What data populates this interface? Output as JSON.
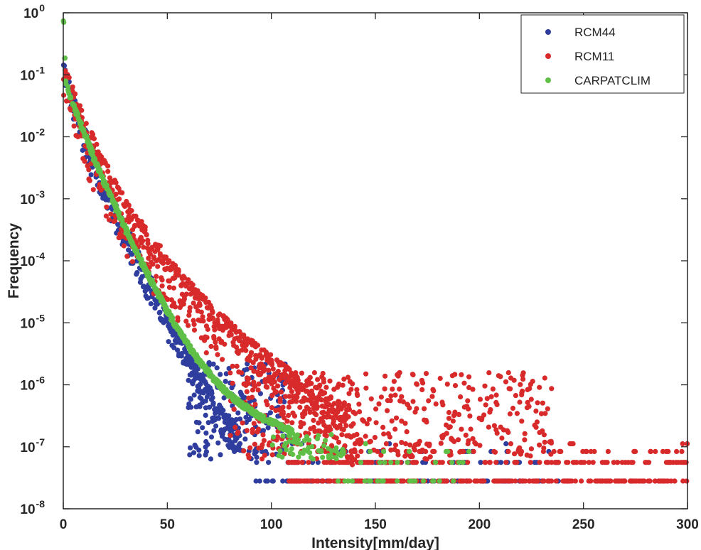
{
  "chart_data": {
    "type": "scatter",
    "title": "",
    "xlabel": "Intensity[mm/day]",
    "ylabel": "Frequency",
    "xlim": [
      0,
      300
    ],
    "ylim_exponents": [
      -8,
      0
    ],
    "yscale": "log",
    "grid": false,
    "legend_position": "top-right",
    "x_ticks": [
      0,
      50,
      100,
      150,
      200,
      250,
      300
    ],
    "y_tick_exponents": [
      0,
      -1,
      -2,
      -3,
      -4,
      -5,
      -6,
      -7,
      -8
    ],
    "series": [
      {
        "name": "RCM44",
        "color": "#2e3d9e",
        "core": [
          [
            0,
            0.11
          ],
          [
            2,
            0.055
          ],
          [
            5,
            0.025
          ],
          [
            10,
            0.0085
          ],
          [
            15,
            0.003
          ],
          [
            20,
            0.0012
          ],
          [
            25,
            0.0005
          ],
          [
            30,
            0.00022
          ],
          [
            35,
            0.0001
          ],
          [
            40,
            4.5e-05
          ],
          [
            45,
            2e-05
          ],
          [
            50,
            9.5e-06
          ],
          [
            55,
            4.5e-06
          ],
          [
            60,
            2.1e-06
          ],
          [
            65,
            1e-06
          ],
          [
            70,
            5.5e-07
          ],
          [
            75,
            3e-07
          ],
          [
            80,
            1.7e-07
          ],
          [
            85,
            1.1e-07
          ]
        ],
        "spread": [
          0.55,
          1.7
        ],
        "scatter_x": [
          60,
          108
        ],
        "scatter_y_exp": [
          -7.2,
          -5.6
        ],
        "floor_x": [
          92,
          238
        ]
      },
      {
        "name": "RCM11",
        "color": "#d82a2a",
        "core": [
          [
            0,
            0.09
          ],
          [
            2,
            0.05
          ],
          [
            5,
            0.028
          ],
          [
            10,
            0.011
          ],
          [
            15,
            0.0045
          ],
          [
            20,
            0.002
          ],
          [
            25,
            0.00095
          ],
          [
            30,
            0.0005
          ],
          [
            35,
            0.00028
          ],
          [
            40,
            0.00016
          ],
          [
            45,
            0.0001
          ],
          [
            50,
            6e-05
          ],
          [
            55,
            3.8e-05
          ],
          [
            60,
            2.5e-05
          ],
          [
            65,
            1.6e-05
          ],
          [
            70,
            1.1e-05
          ],
          [
            75,
            7.5e-06
          ],
          [
            80,
            5.2e-06
          ],
          [
            85,
            3.7e-06
          ],
          [
            90,
            2.7e-06
          ],
          [
            95,
            2e-06
          ],
          [
            100,
            1.5e-06
          ],
          [
            110,
            8.5e-07
          ],
          [
            120,
            5e-07
          ],
          [
            130,
            3e-07
          ],
          [
            140,
            1.9e-07
          ]
        ],
        "spread": [
          0.25,
          2.0
        ],
        "scatter_x": [
          80,
          235
        ],
        "scatter_y_exp": [
          -7.2,
          -5.8
        ],
        "floor_x": [
          108,
          300
        ]
      },
      {
        "name": "CARPATCLIM",
        "color": "#5fbf46",
        "core": [
          [
            0,
            0.7
          ],
          [
            1,
            0.08
          ],
          [
            3,
            0.045
          ],
          [
            5,
            0.03
          ],
          [
            10,
            0.011
          ],
          [
            15,
            0.0042
          ],
          [
            20,
            0.0017
          ],
          [
            25,
            0.00072
          ],
          [
            30,
            0.00031
          ],
          [
            35,
            0.00014
          ],
          [
            40,
            6.5e-05
          ],
          [
            45,
            3.1e-05
          ],
          [
            50,
            1.5e-05
          ],
          [
            55,
            7.8e-06
          ],
          [
            60,
            4.2e-06
          ],
          [
            65,
            2.4e-06
          ],
          [
            70,
            1.5e-06
          ],
          [
            75,
            9.8e-07
          ],
          [
            80,
            6.8e-07
          ],
          [
            85,
            5e-07
          ],
          [
            90,
            3.8e-07
          ],
          [
            95,
            3e-07
          ],
          [
            100,
            2.5e-07
          ],
          [
            105,
            2.1e-07
          ],
          [
            110,
            1.8e-07
          ]
        ],
        "spread": [
          0.9,
          1.1
        ],
        "scatter_x": [
          100,
          135
        ],
        "scatter_y_exp": [
          -7.2,
          -6.8
        ],
        "floor_x": [
          128,
          196
        ]
      }
    ]
  }
}
